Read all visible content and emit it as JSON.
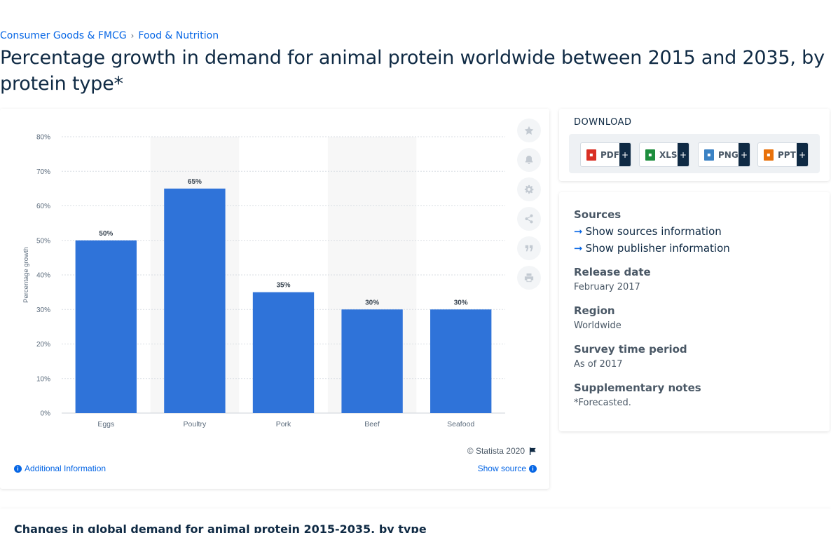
{
  "breadcrumb": {
    "item1": "Consumer Goods & FMCG",
    "separator": "›",
    "item2": "Food & Nutrition"
  },
  "title": "Percentage growth in demand for animal protein worldwide between 2015 and 2035, by protein type*",
  "toolbar": {
    "icons": [
      "star-icon",
      "bell-icon",
      "gear-icon",
      "share-icon",
      "quote-icon",
      "print-icon"
    ]
  },
  "chart_footer": {
    "copyright": "© Statista 2020",
    "additional_info": "Additional Information",
    "show_source": "Show source"
  },
  "download": {
    "title": "DOWNLOAD",
    "buttons": [
      {
        "label": "PDF",
        "icon": "pdf-icon",
        "color": "#d93025",
        "plus": "+"
      },
      {
        "label": "XLS",
        "icon": "xls-icon",
        "color": "#1e8e3e",
        "plus": "+"
      },
      {
        "label": "PNG",
        "icon": "png-icon",
        "color": "#3b82c4",
        "plus": "+"
      },
      {
        "label": "PPT",
        "icon": "ppt-icon",
        "color": "#e8710a",
        "plus": "+"
      }
    ]
  },
  "info": {
    "sources_heading": "Sources",
    "show_sources": "Show sources information",
    "show_publisher": "Show publisher information",
    "release_heading": "Release date",
    "release_value": "February 2017",
    "region_heading": "Region",
    "region_value": "Worldwide",
    "survey_heading": "Survey time period",
    "survey_value": "As of 2017",
    "notes_heading": "Supplementary notes",
    "notes_value": "*Forecasted."
  },
  "bottom": {
    "title": "Changes in global demand for animal protein 2015-2035, by type"
  },
  "colors": {
    "bar": "#2f73d9",
    "accent": "#0666e5",
    "navy": "#0f2a44"
  },
  "chart_data": {
    "type": "bar",
    "categories": [
      "Eggs",
      "Poultry",
      "Pork",
      "Beef",
      "Seafood"
    ],
    "values": [
      50,
      65,
      35,
      30,
      30
    ],
    "value_labels": [
      "50%",
      "65%",
      "35%",
      "30%",
      "30%"
    ],
    "ylabel": "Percentage growth",
    "ylim": [
      0,
      80
    ],
    "yticks": [
      "0%",
      "10%",
      "20%",
      "30%",
      "40%",
      "50%",
      "60%",
      "70%",
      "80%"
    ],
    "grid": true
  }
}
